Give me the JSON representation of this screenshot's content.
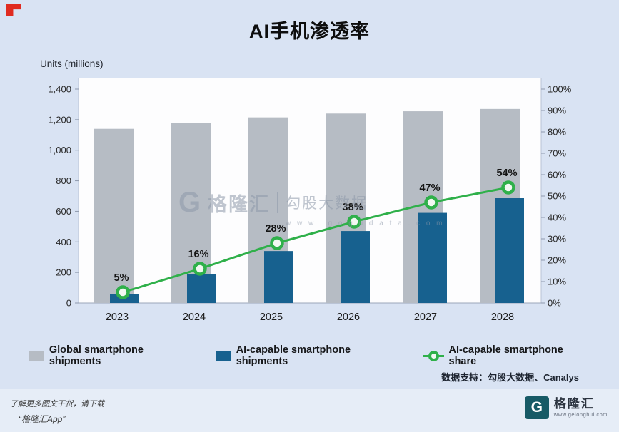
{
  "page": {
    "title": "AI手机渗透率",
    "source": "数据支持：勾股大数据、Canalys",
    "watermark": {
      "letter": "G",
      "brand": "格隆汇",
      "sub": "勾股大数据",
      "url": "w w w . g o g u d a t a . c o m"
    },
    "footer": {
      "line1": "了解更多图文干货，请下载",
      "line2": "“格隆汇App”",
      "logo_letter": "G",
      "logo_text": "格隆汇",
      "logo_url": "www.gelonghui.com"
    }
  },
  "chart_data": {
    "type": "bar",
    "combo": "bar+line",
    "title": "AI手机渗透率",
    "categories": [
      "2023",
      "2024",
      "2025",
      "2026",
      "2027",
      "2028"
    ],
    "series": [
      {
        "name": "Global smartphone shipments",
        "type": "bar",
        "axis": "left",
        "color": "#b6bcc4",
        "values": [
          1140,
          1180,
          1215,
          1240,
          1255,
          1270
        ]
      },
      {
        "name": "AI-capable smartphone shipments",
        "type": "bar",
        "axis": "left",
        "color": "#17618f",
        "values": [
          57,
          189,
          340,
          471,
          590,
          686
        ]
      },
      {
        "name": "AI-capable smartphone share",
        "type": "line",
        "axis": "right",
        "color": "#2fb04a",
        "values_pct": [
          5,
          16,
          28,
          38,
          47,
          54
        ]
      }
    ],
    "point_labels": [
      "5%",
      "16%",
      "28%",
      "38%",
      "47%",
      "54%"
    ],
    "left_axis": {
      "label": "Units (millions)",
      "min": 0,
      "max": 1400,
      "step": 200,
      "tick_labels": [
        "0",
        "200",
        "400",
        "600",
        "800",
        "1,000",
        "1,200",
        "1,400"
      ]
    },
    "right_axis": {
      "min": 0,
      "max": 100,
      "step": 10,
      "tick_labels": [
        "0%",
        "10%",
        "20%",
        "30%",
        "40%",
        "50%",
        "60%",
        "70%",
        "80%",
        "90%",
        "100%"
      ]
    },
    "legend": [
      "Global smartphone shipments",
      "AI-capable smartphone shipments",
      "AI-capable smartphone share"
    ],
    "legend_position": "bottom",
    "grid": false
  }
}
